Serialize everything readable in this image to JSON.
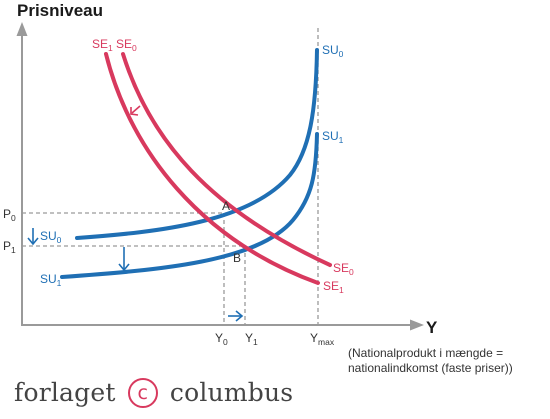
{
  "chart_data": {
    "type": "line",
    "ylabel": "Prisniveau",
    "xlabel": "Y",
    "xlabel_note_line1": "(Nationalprodukt i mængde =",
    "xlabel_note_line2": "nationalindkomst (faste priser))",
    "x_ticks": [
      {
        "main": "Y",
        "sub": "0"
      },
      {
        "main": "Y",
        "sub": "1"
      },
      {
        "main": "Y",
        "sub": "max"
      }
    ],
    "y_ticks": [
      {
        "main": "P",
        "sub": "0"
      },
      {
        "main": "P",
        "sub": "1"
      }
    ],
    "points": [
      {
        "label": "A"
      },
      {
        "label": "B"
      }
    ],
    "series": [
      {
        "name": "SE",
        "sub": "0",
        "color": "#d8395e"
      },
      {
        "name": "SE",
        "sub": "1",
        "color": "#d8395e"
      },
      {
        "name": "SU",
        "sub": "0",
        "color": "#1f6fb4"
      },
      {
        "name": "SU",
        "sub": "1",
        "color": "#1f6fb4"
      }
    ]
  },
  "publisher": {
    "part1": "forlaget",
    "symbol": "c",
    "part2": "columbus"
  }
}
